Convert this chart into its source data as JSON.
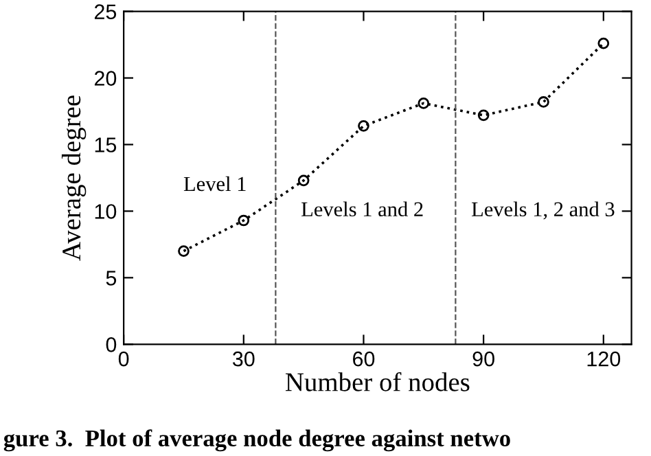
{
  "chart_data": {
    "type": "line",
    "xlabel": "Number of nodes",
    "ylabel": "Average degree",
    "x": [
      15,
      30,
      45,
      60,
      75,
      90,
      105,
      120
    ],
    "series": [
      {
        "color": "#000000",
        "values": [
          7.0,
          9.3,
          12.3,
          16.4,
          18.1,
          17.2,
          18.2,
          22.6
        ]
      }
    ],
    "marker": "circle",
    "line_style": "dotted",
    "xlim": [
      0,
      127
    ],
    "xticks": [
      0,
      30,
      60,
      90,
      120
    ],
    "ylim": [
      0,
      25
    ],
    "yticks": [
      0,
      5,
      10,
      15,
      20,
      25
    ],
    "grid": false,
    "legend": false,
    "ref_lines": [
      {
        "axis": "x",
        "value": 38,
        "color": "#555555",
        "line_style": "dashed"
      },
      {
        "axis": "x",
        "value": 83,
        "color": "#555555",
        "line_style": "dashed"
      }
    ],
    "annotations": [
      "Level 1",
      "Levels 1 and 2",
      "Levels 1, 2 and 3",
      "gure 3.  Plot of average node degree against netwo"
    ]
  }
}
